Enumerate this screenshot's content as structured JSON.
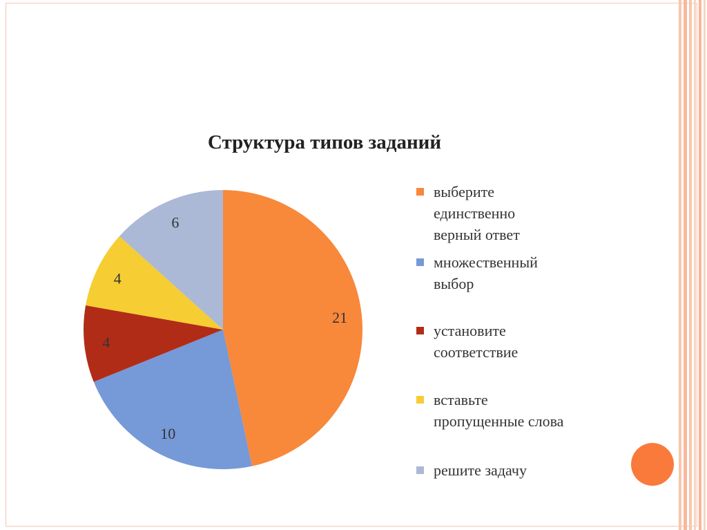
{
  "chart_data": {
    "type": "pie",
    "title": "Структура типов заданий",
    "categories": [
      "выберите единственно верный ответ",
      "множественный выбор",
      "установите соответствие",
      "вставьте пропущенные слова",
      "решите задачу"
    ],
    "values": [
      21,
      10,
      4,
      4,
      6
    ],
    "data_labels": [
      "21",
      "10",
      "4",
      "4",
      "6"
    ],
    "colors": [
      "#f8883a",
      "#7699d8",
      "#b12c17",
      "#f6cd32",
      "#abb9d6"
    ],
    "legend_position": "right"
  },
  "legend": [
    {
      "label": "выберите\nединственно\nверный ответ",
      "color": "#f8883a"
    },
    {
      "label": "множественный\nвыбор",
      "color": "#7699d8"
    },
    {
      "label": "установите\nсоответствие",
      "color": "#b12c17"
    },
    {
      "label": "вставьте\nпропущенные слова",
      "color": "#f6cd32"
    },
    {
      "label": "решите задачу",
      "color": "#abb9d6"
    }
  ],
  "decor": {
    "accent_color": "#fa7a3c",
    "stripe_color": "#f7bfa6"
  }
}
